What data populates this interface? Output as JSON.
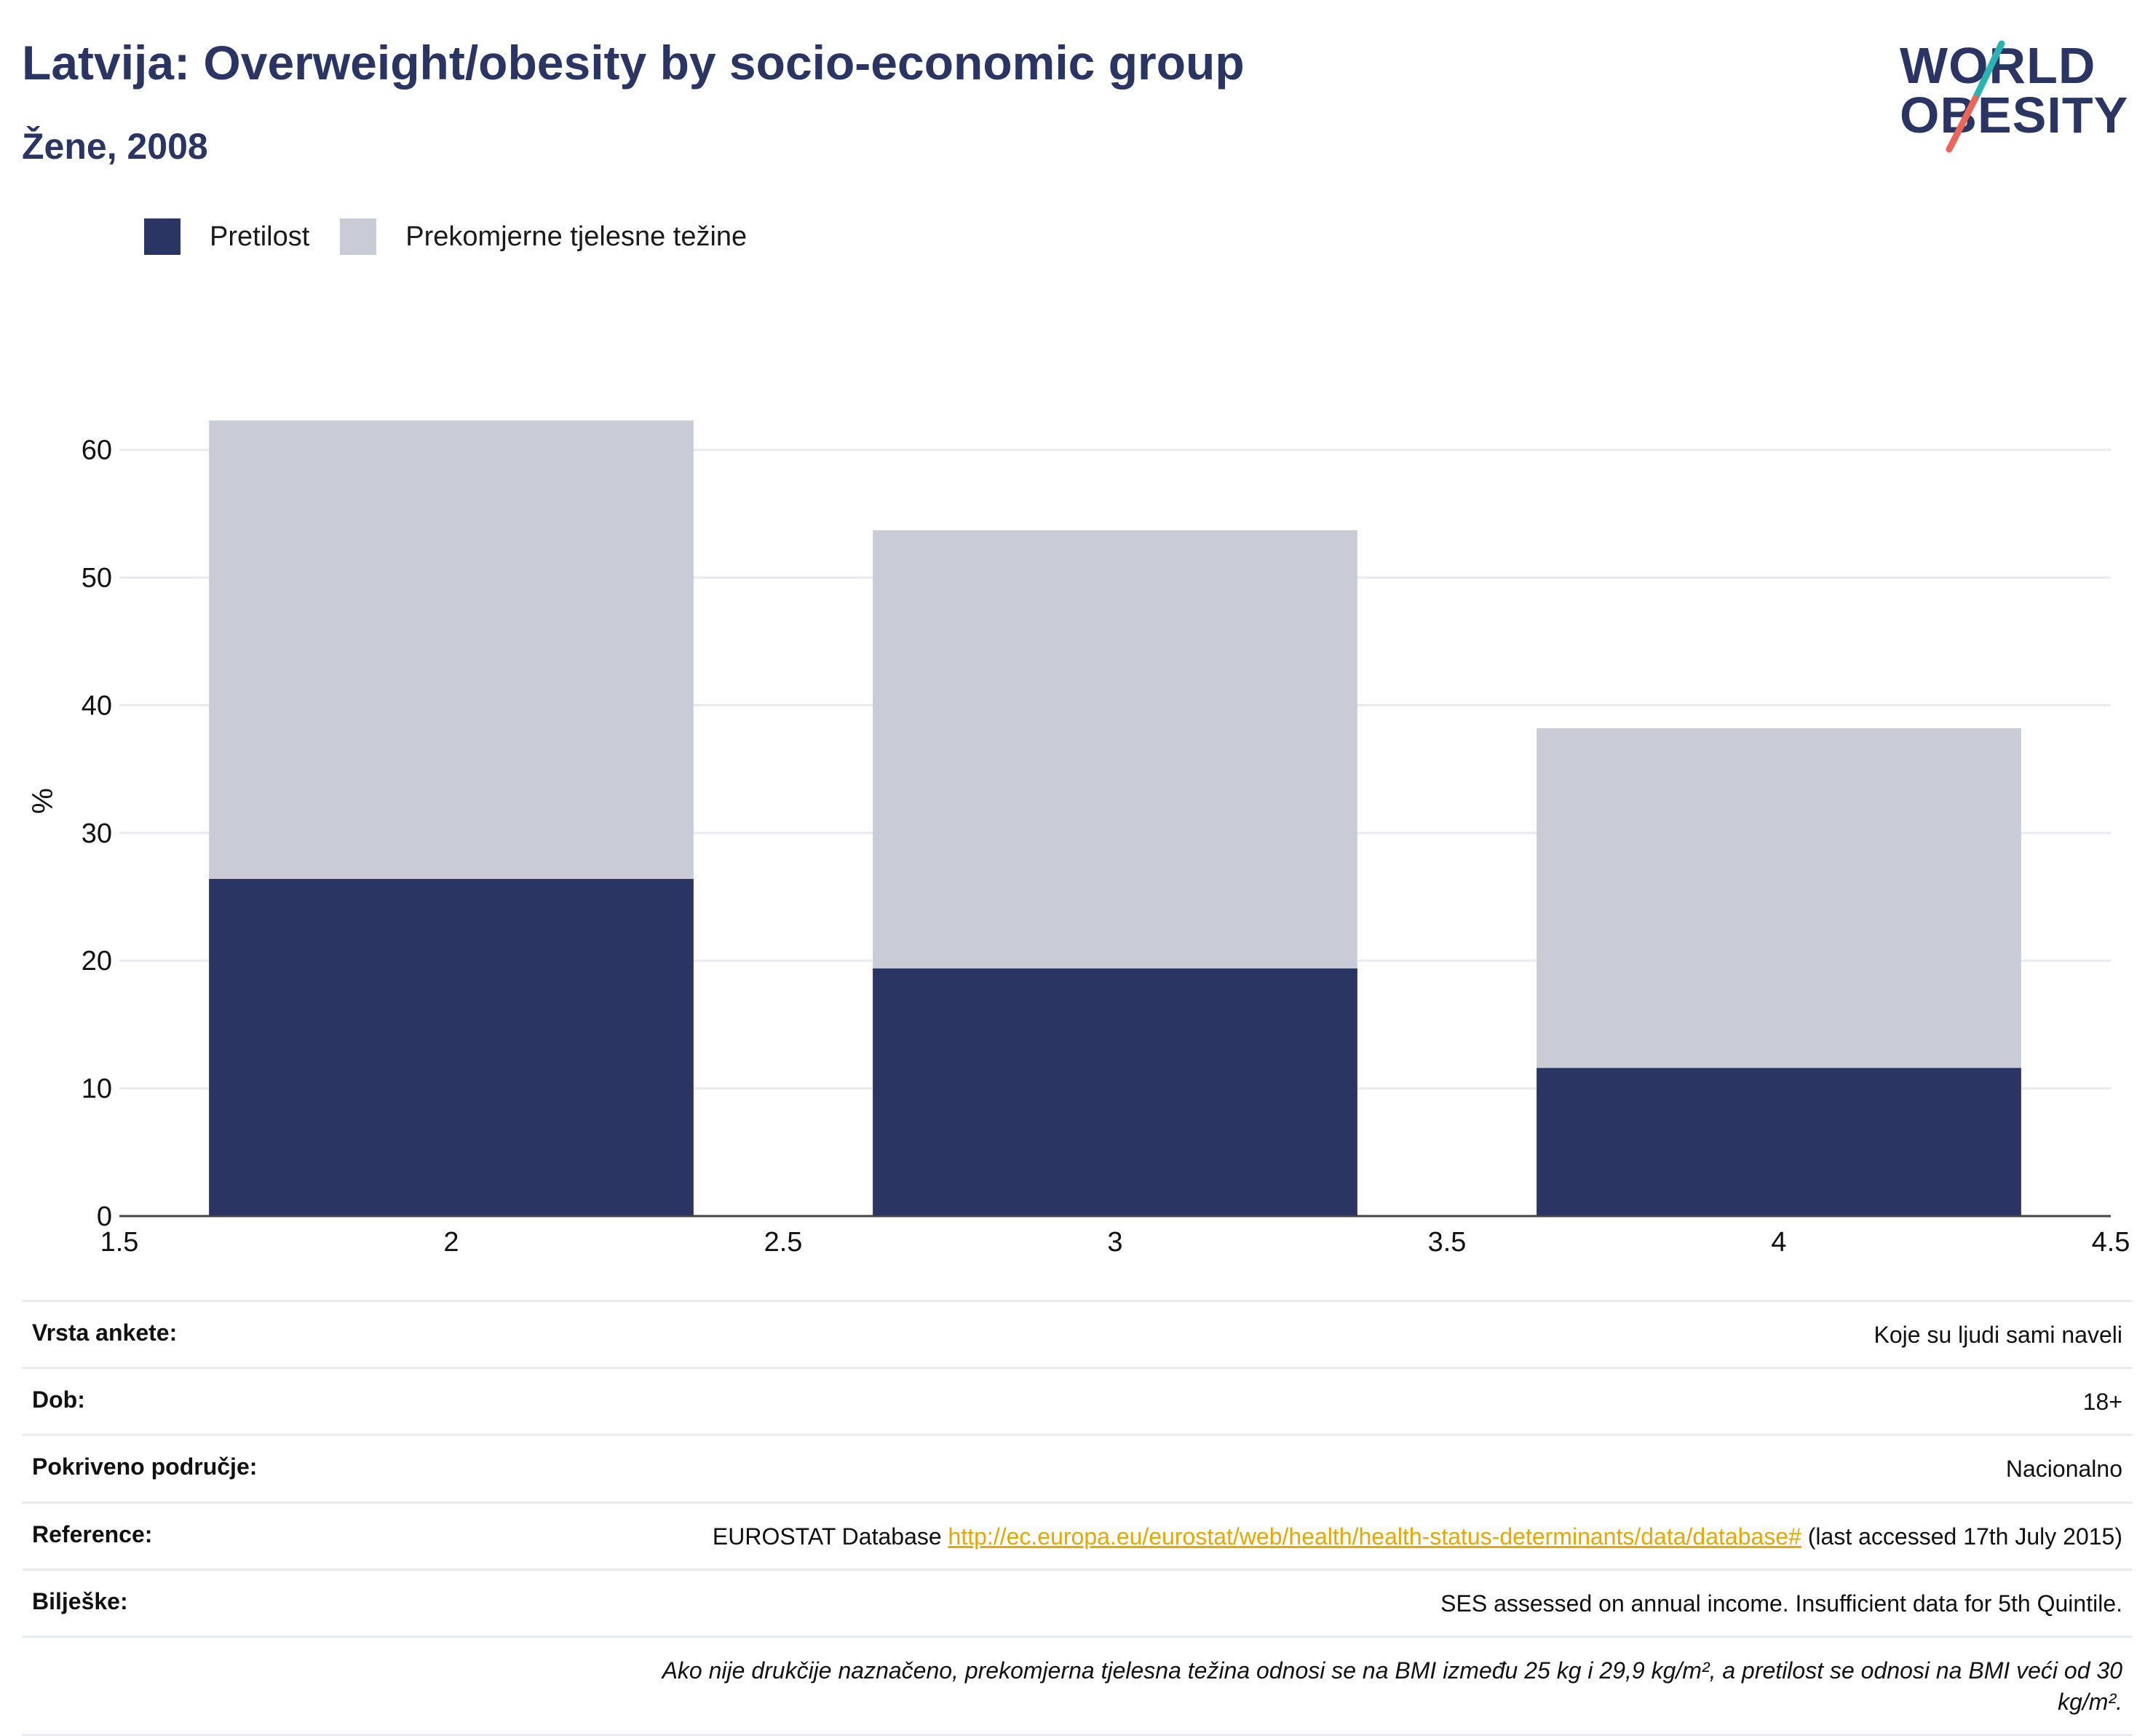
{
  "header": {
    "title": "Latvija: Overweight/obesity by socio-economic group",
    "subtitle": "Žene, 2008"
  },
  "logo": {
    "line1": "WORLD",
    "line2": "OBESITY",
    "colors": {
      "text": "#2a3563",
      "slash_top": "#2ab3b1",
      "slash_bottom": "#e8665a"
    }
  },
  "legend": [
    {
      "label": "Pretilost",
      "color": "#2a3563"
    },
    {
      "label": "Prekomjerne tjelesne težine",
      "color": "#c9ccd7"
    }
  ],
  "chart_data": {
    "type": "bar",
    "stacked": true,
    "x": [
      2,
      3,
      4
    ],
    "series": [
      {
        "name": "Pretilost",
        "values": [
          26.4,
          19.4,
          11.6
        ],
        "color": "#2a3563"
      },
      {
        "name": "Prekomjerne tjelesne težine",
        "values": [
          35.9,
          34.3,
          26.6
        ],
        "color": "#c9ccd7"
      }
    ],
    "xlim": [
      1.5,
      4.5
    ],
    "x_ticks": [
      "1.5",
      "2",
      "2.5",
      "3",
      "3.5",
      "4",
      "4.5"
    ],
    "ylim": [
      0,
      65
    ],
    "y_ticks": [
      "0",
      "10",
      "20",
      "30",
      "40",
      "50",
      "60"
    ],
    "ylabel": "%",
    "xlabel": "",
    "grid": true,
    "legend_position": "top-left"
  },
  "info": {
    "survey_type": {
      "key": "Vrsta ankete:",
      "value": "Koje su ljudi sami naveli"
    },
    "age": {
      "key": "Dob:",
      "value": "18+"
    },
    "coverage": {
      "key": "Pokriveno područje:",
      "value": "Nacionalno"
    },
    "reference": {
      "key": "Reference:",
      "prefix": "EUROSTAT Database",
      "link": "http://ec.europa.eu/eurostat/web/health/health-status-determinants/data/database#",
      "suffix": "(last accessed 17th July 2015)"
    },
    "notes": {
      "key": "Bilješke:",
      "value": "SES assessed on annual income. Insufficient data for 5th Quintile."
    },
    "footnote": "Ako nije drukčije naznačeno, prekomjerna tjelesna težina odnosi se na BMI između 25 kg i 29,9 kg/m², a pretilost se odnosi na BMI veći od 30 kg/m²."
  }
}
